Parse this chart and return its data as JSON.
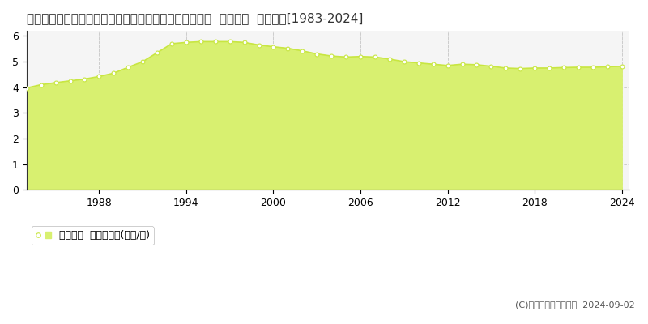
{
  "title": "栃木県下都賀郡壬生町大字安塚字西原２３８９番１１外  地価公示  地価推移[1983-2024]",
  "years": [
    1983,
    1984,
    1985,
    1986,
    1987,
    1988,
    1989,
    1990,
    1991,
    1992,
    1993,
    1994,
    1995,
    1996,
    1997,
    1998,
    1999,
    2000,
    2001,
    2002,
    2003,
    2004,
    2005,
    2006,
    2007,
    2008,
    2009,
    2010,
    2011,
    2012,
    2013,
    2014,
    2015,
    2016,
    2017,
    2018,
    2019,
    2020,
    2021,
    2022,
    2023,
    2024
  ],
  "values": [
    3.97,
    4.1,
    4.18,
    4.25,
    4.32,
    4.42,
    4.55,
    4.78,
    5.0,
    5.35,
    5.7,
    5.75,
    5.78,
    5.78,
    5.78,
    5.75,
    5.65,
    5.58,
    5.52,
    5.42,
    5.3,
    5.22,
    5.18,
    5.2,
    5.18,
    5.1,
    5.0,
    4.95,
    4.9,
    4.85,
    4.9,
    4.88,
    4.82,
    4.75,
    4.73,
    4.75,
    4.75,
    4.77,
    4.78,
    4.78,
    4.8,
    4.82
  ],
  "line_color": "#c8e641",
  "fill_color": "#d8f070",
  "marker_color": "#ffffff",
  "marker_edge_color": "#c8e641",
  "background_color": "#ffffff",
  "plot_bg_color": "#f5f5f5",
  "grid_color": "#cccccc",
  "ylabel_ticks": [
    0,
    1,
    2,
    3,
    4,
    5,
    6
  ],
  "xtick_labels": [
    "1988",
    "1994",
    "2000",
    "2006",
    "2012",
    "2018",
    "2024"
  ],
  "xtick_positions": [
    1988,
    1994,
    2000,
    2006,
    2012,
    2018,
    2024
  ],
  "ylim": [
    0,
    6.2
  ],
  "xlim": [
    1983,
    2024.5
  ],
  "legend_label": "地価公示  平均坪単価(万円/坪)",
  "copyright_text": "(C)土地価格ドットコム  2024-09-02",
  "title_fontsize": 11,
  "axis_fontsize": 9,
  "legend_fontsize": 9,
  "copyright_fontsize": 8
}
